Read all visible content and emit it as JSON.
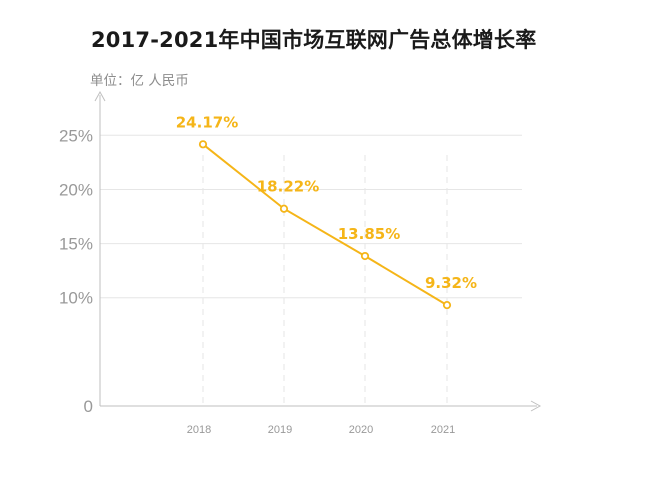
{
  "header": {
    "title": "2017-2021年中国市场互联网广告总体增长率",
    "unit": "单位：亿 人民币"
  },
  "colors": {
    "series": "#f5b518",
    "axis": "#bfbfbf",
    "grid": "#e6e6e6",
    "text": "#1a1a1a",
    "muted": "#999999"
  },
  "chart_data": {
    "type": "line",
    "title": "2017-2021年中国市场互联网广告总体增长率",
    "xlabel": "",
    "ylabel": "单位：亿 人民币",
    "categories": [
      "2018",
      "2019",
      "2020",
      "2021"
    ],
    "series": [
      {
        "values": [
          24.17,
          18.22,
          13.85,
          9.32
        ],
        "labels": [
          "24.17%",
          "18.22%",
          "13.85%",
          "9.32%"
        ]
      }
    ],
    "yticks": [
      {
        "value": 0,
        "label": "0"
      },
      {
        "value": 10,
        "label": "10%"
      },
      {
        "value": 15,
        "label": "15%"
      },
      {
        "value": 20,
        "label": "20%"
      },
      {
        "value": 25,
        "label": "25%"
      }
    ],
    "ylim": [
      0,
      29
    ],
    "grid": true,
    "legend": "none"
  }
}
